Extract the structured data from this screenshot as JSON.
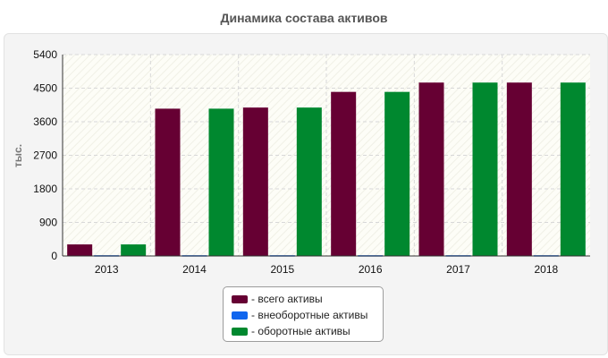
{
  "chart_data": {
    "type": "bar",
    "title": "Динамика состава активов",
    "ylabel": "тыс.",
    "xlabel": "",
    "categories": [
      "2013",
      "2014",
      "2015",
      "2016",
      "2017",
      "2018"
    ],
    "yticks": [
      "0",
      "900",
      "1800",
      "2700",
      "3600",
      "4500",
      "5400"
    ],
    "ylim": [
      0,
      5400
    ],
    "grid": true,
    "legend_position": "bottom-center",
    "series": [
      {
        "name": "- всего активы",
        "color": "#660033",
        "values": [
          310,
          3950,
          3980,
          4400,
          4650,
          4650
        ]
      },
      {
        "name": "- внеоборотные активы",
        "color": "#1166ee",
        "values": [
          20,
          20,
          20,
          20,
          20,
          20
        ]
      },
      {
        "name": "- оборотные активы",
        "color": "#00882f",
        "values": [
          310,
          3950,
          3980,
          4400,
          4650,
          4650
        ]
      }
    ]
  }
}
